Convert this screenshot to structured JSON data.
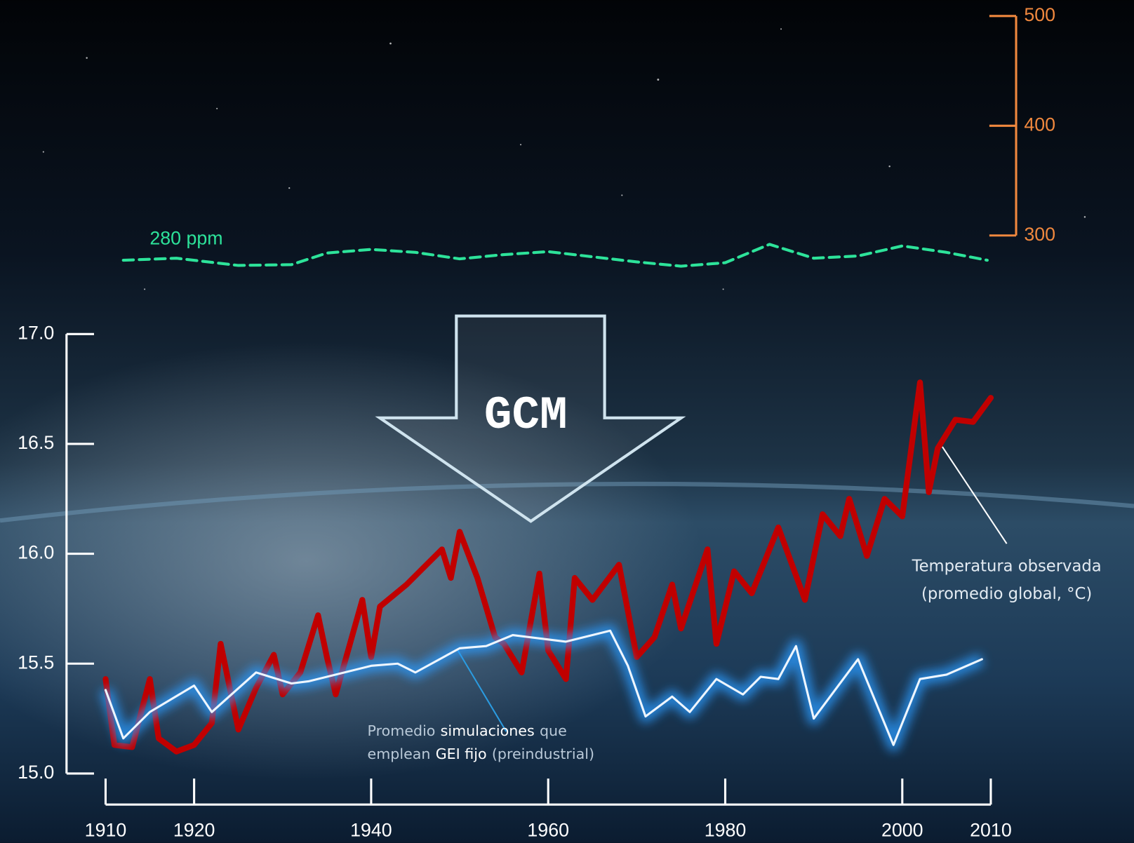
{
  "chart_data": {
    "type": "line",
    "gcm_label": "GCM",
    "co2_label": "280 ppm",
    "observed_label": [
      "Temperatura observada",
      "(promedio global, °C)"
    ],
    "simulation_label": [
      [
        "Promedio",
        "simulaciones",
        "que"
      ],
      [
        "emplean",
        "GEI fijo",
        "(preindustrial)"
      ]
    ],
    "xlim": [
      1910,
      2010
    ],
    "xticks": [
      1910,
      1920,
      1940,
      1960,
      1980,
      2000,
      2010
    ],
    "ylim": [
      15,
      17
    ],
    "yticks": [
      {
        "value": 15,
        "label": "15.0"
      },
      {
        "value": 15.5,
        "label": "15.5"
      },
      {
        "value": 16,
        "label": "16.0"
      },
      {
        "value": 16.5,
        "label": "16.5"
      },
      {
        "value": 17,
        "label": "17.0"
      }
    ],
    "y2lim": [
      280,
      500
    ],
    "y2ticks": [
      300,
      400,
      500
    ],
    "axis_color": "#ffffff",
    "y2_color": "#f0883e",
    "series": [
      {
        "color": "#c00000",
        "width": 8,
        "glow": false,
        "dashed": false,
        "x": [
          1910,
          1911,
          1913,
          1915,
          1916,
          1918,
          1920,
          1922,
          1923,
          1925,
          1927,
          1929,
          1930,
          1932,
          1934,
          1935,
          1936,
          1939,
          1940,
          1941,
          1944,
          1946,
          1948,
          1949,
          1950,
          1952,
          1954,
          1955,
          1957,
          1959,
          1960,
          1962,
          1963,
          1965,
          1968,
          1970,
          1972,
          1974,
          1975,
          1978,
          1979,
          1981,
          1983,
          1985,
          1986,
          1989,
          1991,
          1993,
          1994,
          1996,
          1998,
          2000,
          2002,
          2003,
          2004,
          2006,
          2008,
          2010
        ],
        "values": [
          15.43,
          15.13,
          15.12,
          15.43,
          15.16,
          15.1,
          15.13,
          15.23,
          15.59,
          15.2,
          15.39,
          15.54,
          15.36,
          15.46,
          15.72,
          15.53,
          15.36,
          15.79,
          15.53,
          15.76,
          15.86,
          15.94,
          16.02,
          15.89,
          16.1,
          15.89,
          15.62,
          15.59,
          15.46,
          15.91,
          15.56,
          15.43,
          15.89,
          15.79,
          15.95,
          15.53,
          15.62,
          15.86,
          15.66,
          16.02,
          15.59,
          15.92,
          15.82,
          16.02,
          16.12,
          15.79,
          16.18,
          16.08,
          16.25,
          15.99,
          16.25,
          16.17,
          16.78,
          16.28,
          16.48,
          16.61,
          16.6,
          16.71
        ]
      },
      {
        "color": "#eef6ff",
        "width": 3,
        "glow": true,
        "dashed": false,
        "x": [
          1910,
          1912,
          1915,
          1920,
          1922,
          1927,
          1931,
          1933,
          1940,
          1943,
          1945,
          1950,
          1953,
          1956,
          1962,
          1967,
          1969,
          1971,
          1974,
          1976,
          1979,
          1982,
          1984,
          1986,
          1988,
          1990,
          1995,
          1999,
          2002,
          2005,
          2009
        ],
        "values": [
          15.38,
          15.16,
          15.28,
          15.4,
          15.28,
          15.46,
          15.41,
          15.42,
          15.49,
          15.5,
          15.46,
          15.57,
          15.58,
          15.63,
          15.6,
          15.65,
          15.49,
          15.26,
          15.35,
          15.28,
          15.43,
          15.36,
          15.44,
          15.43,
          15.58,
          15.25,
          15.52,
          15.13,
          15.43,
          15.45,
          15.52
        ]
      },
      {
        "color": "#2de39a",
        "width": 4,
        "glow": false,
        "dashed": true,
        "axis": "y2",
        "x": [
          1912,
          1918,
          1925,
          1931,
          1935,
          1940,
          1945,
          1950,
          1955,
          1960,
          1965,
          1970,
          1975,
          1980,
          1985,
          1990,
          1995,
          2000,
          2005,
          2009.6
        ],
        "values": [
          277.4,
          279.3,
          272.7,
          273.4,
          284,
          287.3,
          284.6,
          278.7,
          282.6,
          285.3,
          280.6,
          275.9,
          272,
          275.2,
          291.9,
          279.3,
          281.3,
          290.5,
          284.6,
          277.4
        ]
      }
    ]
  }
}
